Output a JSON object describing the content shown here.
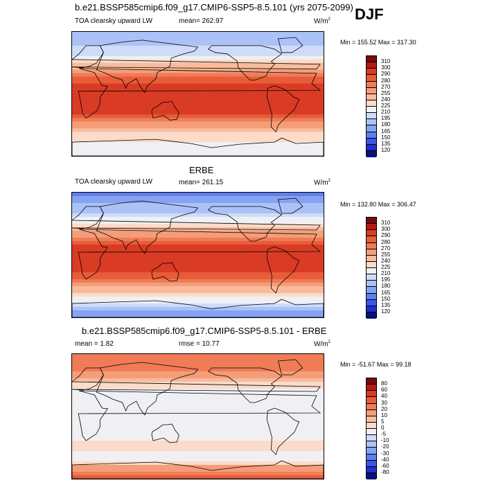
{
  "header": {
    "title": "b.e21.BSSP585cmip6.f09_g17.CMIP6-SSP5-8.5.101 (yrs 2075-2099)",
    "season": "DJF"
  },
  "panels": [
    {
      "title": "",
      "var_label": "TOA clearsky upward LW",
      "stat_left": "mean= 262.97",
      "units": "W/m",
      "units_sup": "2",
      "minmax": "Min = 155.52 Max = 317.30"
    },
    {
      "title": "ERBE",
      "var_label": "TOA clearsky upward LW",
      "stat_left": "mean= 261.15",
      "units": "W/m",
      "units_sup": "2",
      "minmax": "Min = 132.80 Max = 306.47"
    },
    {
      "title": "b.e21.BSSP585cmip6.f09_g17.CMIP6-SSP5-8.5.101 - ERBE",
      "var_label": "mean =   1.82",
      "stat_left": "rmse =  10.77",
      "units": "W/m",
      "units_sup": "2",
      "minmax": "Min = -51.67 Max =  99.18"
    }
  ],
  "chart_data": [
    {
      "type": "heatmap",
      "title": "b.e21.BSSP585cmip6.f09_g17.CMIP6-SSP5-8.5.101 (yrs 2075-2099)",
      "variable": "TOA clearsky upward LW",
      "season": "DJF",
      "units": "W/m2",
      "mean": 262.97,
      "min": 155.52,
      "max": 317.3,
      "colorbar_levels": [
        120,
        135,
        150,
        165,
        180,
        195,
        210,
        225,
        240,
        255,
        270,
        280,
        290,
        300,
        310
      ],
      "colorbar_colors": [
        "#0b1177",
        "#1f2fd0",
        "#3b57e8",
        "#5f7fed",
        "#86a2f2",
        "#aac2f7",
        "#cfdcf9",
        "#f0f0f4",
        "#fbdbc9",
        "#f8bb9c",
        "#f49d78",
        "#ef7c56",
        "#e85c3a",
        "#d93b24",
        "#b81a12",
        "#7a0a0a"
      ],
      "zonal_profile": [
        {
          "lat": 90,
          "value": 185
        },
        {
          "lat": 60,
          "value": 200
        },
        {
          "lat": 45,
          "value": 235
        },
        {
          "lat": 30,
          "value": 270
        },
        {
          "lat": 15,
          "value": 292
        },
        {
          "lat": 0,
          "value": 298
        },
        {
          "lat": -15,
          "value": 300
        },
        {
          "lat": -30,
          "value": 290
        },
        {
          "lat": -45,
          "value": 262
        },
        {
          "lat": -60,
          "value": 235
        },
        {
          "lat": -90,
          "value": 210
        }
      ]
    },
    {
      "type": "heatmap",
      "title": "ERBE",
      "variable": "TOA clearsky upward LW",
      "season": "DJF",
      "units": "W/m2",
      "mean": 261.15,
      "min": 132.8,
      "max": 306.47,
      "colorbar_levels": [
        120,
        135,
        150,
        165,
        180,
        195,
        210,
        225,
        240,
        255,
        270,
        280,
        290,
        300,
        310
      ],
      "colorbar_colors": [
        "#0b1177",
        "#1f2fd0",
        "#3b57e8",
        "#5f7fed",
        "#86a2f2",
        "#aac2f7",
        "#cfdcf9",
        "#f0f0f4",
        "#fbdbc9",
        "#f8bb9c",
        "#f49d78",
        "#ef7c56",
        "#e85c3a",
        "#d93b24",
        "#b81a12",
        "#7a0a0a"
      ],
      "zonal_profile": [
        {
          "lat": 90,
          "value": 160
        },
        {
          "lat": 60,
          "value": 195
        },
        {
          "lat": 45,
          "value": 225
        },
        {
          "lat": 30,
          "value": 265
        },
        {
          "lat": 15,
          "value": 290
        },
        {
          "lat": 0,
          "value": 296
        },
        {
          "lat": -15,
          "value": 298
        },
        {
          "lat": -30,
          "value": 288
        },
        {
          "lat": -45,
          "value": 255
        },
        {
          "lat": -60,
          "value": 230
        },
        {
          "lat": -90,
          "value": 160
        }
      ]
    },
    {
      "type": "heatmap",
      "title": "b.e21.BSSP585cmip6.f09_g17.CMIP6-SSP5-8.5.101 - ERBE",
      "variable": "TOA clearsky upward LW difference",
      "season": "DJF",
      "units": "W/m2",
      "mean": 1.82,
      "rmse": 10.77,
      "min": -51.67,
      "max": 99.18,
      "colorbar_levels": [
        -80,
        -60,
        -40,
        -30,
        -20,
        -10,
        -5,
        0,
        5,
        10,
        20,
        30,
        40,
        60,
        80
      ],
      "colorbar_colors": [
        "#0b1177",
        "#1f2fd0",
        "#3b57e8",
        "#5f7fed",
        "#86a2f2",
        "#aac2f7",
        "#cfdcf9",
        "#f0f0f4",
        "#fbdbc9",
        "#f8bb9c",
        "#f49d78",
        "#ef7c56",
        "#e85c3a",
        "#d93b24",
        "#b81a12",
        "#7a0a0a"
      ],
      "zonal_profile": [
        {
          "lat": 90,
          "value": 30
        },
        {
          "lat": 70,
          "value": 25
        },
        {
          "lat": 55,
          "value": 12
        },
        {
          "lat": 45,
          "value": 2
        },
        {
          "lat": 30,
          "value": -4
        },
        {
          "lat": 15,
          "value": -5
        },
        {
          "lat": 0,
          "value": -3
        },
        {
          "lat": -15,
          "value": -4
        },
        {
          "lat": -30,
          "value": -3
        },
        {
          "lat": -45,
          "value": 4
        },
        {
          "lat": -60,
          "value": -6
        },
        {
          "lat": -90,
          "value": 35
        }
      ]
    }
  ]
}
